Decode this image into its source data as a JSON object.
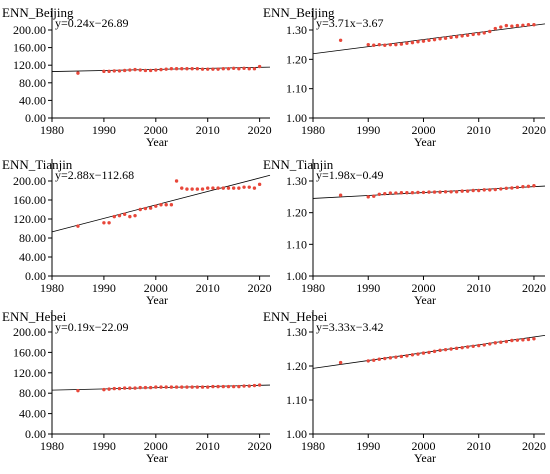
{
  "colors": {
    "point": "#e8473a",
    "fit_line": "#000000",
    "axis": "#000000"
  },
  "chart_data": [
    {
      "type": "scatter",
      "title": "ENN_Beijing",
      "equation": "y=0.24x−26.89",
      "xlabel": "Year",
      "xlim": [
        1980,
        2022
      ],
      "ylim": [
        0,
        200
      ],
      "xticks": [
        "1980",
        "1990",
        "2000",
        "2010",
        "2020"
      ],
      "yticks": [
        "0.00",
        "40.00",
        "80.00",
        "120.00",
        "160.00",
        "200.00"
      ],
      "fit": {
        "x": [
          1980,
          2022
        ],
        "y": [
          105.5,
          115.7
        ]
      },
      "points": {
        "x": [
          1985,
          1990,
          1991,
          1992,
          1993,
          1994,
          1995,
          1996,
          1997,
          1998,
          1999,
          2000,
          2001,
          2002,
          2003,
          2004,
          2005,
          2006,
          2007,
          2008,
          2009,
          2010,
          2011,
          2012,
          2013,
          2014,
          2015,
          2016,
          2017,
          2018,
          2019,
          2020
        ],
        "y": [
          102,
          106,
          106,
          107,
          107,
          108,
          109,
          110,
          109,
          108,
          108,
          109,
          110,
          111,
          112,
          112,
          112,
          112,
          112,
          112,
          111,
          111,
          111,
          111,
          112,
          112,
          113,
          112,
          113,
          112,
          112,
          117
        ]
      }
    },
    {
      "type": "scatter",
      "title": "ENN_Beijing",
      "equation": "y=3.71x−3.67",
      "xlabel": "Year",
      "xlim": [
        1980,
        2022
      ],
      "ylim": [
        1.0,
        1.3
      ],
      "xticks": [
        "1980",
        "1990",
        "2000",
        "2010",
        "2020"
      ],
      "yticks": [
        "1.00",
        "1.10",
        "1.20",
        "1.30"
      ],
      "fit": {
        "x": [
          1980,
          2022
        ],
        "y": [
          1.219,
          1.321
        ]
      },
      "points": {
        "x": [
          1985,
          1990,
          1991,
          1992,
          1993,
          1994,
          1995,
          1996,
          1997,
          1998,
          1999,
          2000,
          2001,
          2002,
          2003,
          2004,
          2005,
          2006,
          2007,
          2008,
          2009,
          2010,
          2011,
          2012,
          2013,
          2014,
          2015,
          2016,
          2017,
          2018,
          2019,
          2020
        ],
        "y": [
          1.265,
          1.25,
          1.248,
          1.25,
          1.248,
          1.25,
          1.25,
          1.252,
          1.255,
          1.257,
          1.26,
          1.262,
          1.265,
          1.267,
          1.27,
          1.272,
          1.275,
          1.277,
          1.28,
          1.282,
          1.285,
          1.287,
          1.29,
          1.295,
          1.305,
          1.31,
          1.315,
          1.313,
          1.315,
          1.316,
          1.318,
          1.318
        ]
      }
    },
    {
      "type": "scatter",
      "title": "ENN_Tianjin",
      "equation": "y=2.88x−112.68",
      "xlabel": "Year",
      "xlim": [
        1980,
        2022
      ],
      "ylim": [
        0,
        200
      ],
      "xticks": [
        "1980",
        "1990",
        "2000",
        "2010",
        "2020"
      ],
      "yticks": [
        "0.00",
        "40.00",
        "80.00",
        "120.00",
        "160.00",
        "200.00"
      ],
      "fit": {
        "x": [
          1980,
          2022
        ],
        "y": [
          93,
          212
        ]
      },
      "points": {
        "x": [
          1985,
          1990,
          1991,
          1992,
          1993,
          1994,
          1995,
          1996,
          1997,
          1998,
          1999,
          2000,
          2001,
          2002,
          2003,
          2004,
          2005,
          2006,
          2007,
          2008,
          2009,
          2010,
          2011,
          2012,
          2013,
          2014,
          2015,
          2016,
          2017,
          2018,
          2019,
          2020
        ],
        "y": [
          105,
          112,
          112,
          125,
          127,
          130,
          125,
          127,
          140,
          142,
          143,
          147,
          150,
          150,
          150,
          200,
          185,
          183,
          183,
          183,
          183,
          185,
          185,
          185,
          185,
          185,
          185,
          185,
          187,
          187,
          185,
          193
        ]
      }
    },
    {
      "type": "scatter",
      "title": "ENN_Tianjin",
      "equation": "y=1.98x−0.49",
      "xlabel": "Year",
      "xlim": [
        1980,
        2022
      ],
      "ylim": [
        1.0,
        1.3
      ],
      "xticks": [
        "1980",
        "1990",
        "2000",
        "2010",
        "2020"
      ],
      "yticks": [
        "1.00",
        "1.10",
        "1.20",
        "1.30"
      ],
      "fit": {
        "x": [
          1980,
          2022
        ],
        "y": [
          1.245,
          1.284
        ]
      },
      "points": {
        "x": [
          1985,
          1990,
          1991,
          1992,
          1993,
          1994,
          1995,
          1996,
          1997,
          1998,
          1999,
          2000,
          2001,
          2002,
          2003,
          2004,
          2005,
          2006,
          2007,
          2008,
          2009,
          2010,
          2011,
          2012,
          2013,
          2014,
          2015,
          2016,
          2017,
          2018,
          2019,
          2020
        ],
        "y": [
          1.255,
          1.25,
          1.252,
          1.258,
          1.26,
          1.262,
          1.262,
          1.263,
          1.263,
          1.263,
          1.264,
          1.264,
          1.265,
          1.265,
          1.265,
          1.266,
          1.266,
          1.266,
          1.268,
          1.268,
          1.27,
          1.27,
          1.272,
          1.272,
          1.273,
          1.275,
          1.277,
          1.278,
          1.28,
          1.282,
          1.283,
          1.285
        ]
      }
    },
    {
      "type": "scatter",
      "title": "ENN_Hebei",
      "equation": "y=0.19x−22.09",
      "xlabel": "Year",
      "xlim": [
        1980,
        2022
      ],
      "ylim": [
        0,
        200
      ],
      "xticks": [
        "1980",
        "1990",
        "2000",
        "2010",
        "2020"
      ],
      "yticks": [
        "0.00",
        "40.00",
        "80.00",
        "120.00",
        "160.00",
        "200.00"
      ],
      "fit": {
        "x": [
          1980,
          2022
        ],
        "y": [
          86,
          96
        ]
      },
      "points": {
        "x": [
          1985,
          1990,
          1991,
          1992,
          1993,
          1994,
          1995,
          1996,
          1997,
          1998,
          1999,
          2000,
          2001,
          2002,
          2003,
          2004,
          2005,
          2006,
          2007,
          2008,
          2009,
          2010,
          2011,
          2012,
          2013,
          2014,
          2015,
          2016,
          2017,
          2018,
          2019,
          2020
        ],
        "y": [
          85,
          87,
          88,
          89,
          89,
          90,
          90,
          90,
          91,
          91,
          91,
          92,
          92,
          92,
          92,
          92,
          92,
          92,
          92,
          92,
          92,
          92,
          93,
          93,
          93,
          93,
          93,
          93,
          94,
          94,
          95,
          96
        ]
      }
    },
    {
      "type": "scatter",
      "title": "ENN_Hebei",
      "equation": "y=3.33x−3.42",
      "xlabel": "Year",
      "xlim": [
        1980,
        2022
      ],
      "ylim": [
        1.0,
        1.3
      ],
      "xticks": [
        "1980",
        "1990",
        "2000",
        "2010",
        "2020"
      ],
      "yticks": [
        "1.00",
        "1.10",
        "1.20",
        "1.30"
      ],
      "fit": {
        "x": [
          1980,
          2022
        ],
        "y": [
          1.193,
          1.29
        ]
      },
      "points": {
        "x": [
          1985,
          1990,
          1991,
          1992,
          1993,
          1994,
          1995,
          1996,
          1997,
          1998,
          1999,
          2000,
          2001,
          2002,
          2003,
          2004,
          2005,
          2006,
          2007,
          2008,
          2009,
          2010,
          2011,
          2012,
          2013,
          2014,
          2015,
          2016,
          2017,
          2018,
          2019,
          2020
        ],
        "y": [
          1.21,
          1.215,
          1.217,
          1.22,
          1.222,
          1.224,
          1.226,
          1.228,
          1.23,
          1.233,
          1.235,
          1.238,
          1.24,
          1.243,
          1.246,
          1.248,
          1.25,
          1.252,
          1.254,
          1.256,
          1.258,
          1.26,
          1.262,
          1.265,
          1.268,
          1.27,
          1.272,
          1.275,
          1.276,
          1.277,
          1.278,
          1.28
        ]
      }
    }
  ]
}
